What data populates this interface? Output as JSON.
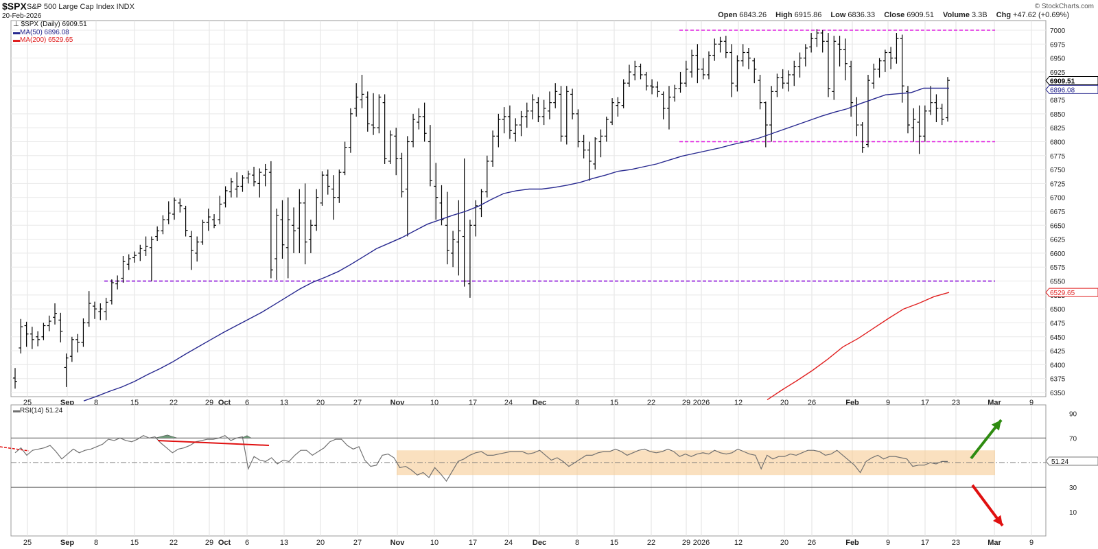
{
  "header": {
    "symbol": "$SPX",
    "name": "S&P 500 Large Cap Index INDX",
    "date": "20-Feb-2026",
    "brand": "© StockCharts.com",
    "open_label": "Open",
    "open": "6843.26",
    "high_label": "High",
    "high": "6915.86",
    "low_label": "Low",
    "low": "6836.33",
    "close_label": "Close",
    "close": "6909.51",
    "volume_label": "Volume",
    "volume": "3.3B",
    "chg_label": "Chg",
    "chg": "+47.62 (+0.69%)"
  },
  "legend": {
    "price": "$SPX (Daily) 6909.51",
    "ma50": "MA(50) 6896.08",
    "ma200": "MA(200) 6529.65",
    "rsi": "RSI(14) 51.24"
  },
  "colors": {
    "bars": "#000000",
    "ma50": "#27288f",
    "ma200": "#e02020",
    "magenta": "#e020e0",
    "purple": "#8a10d8",
    "rsi_line": "#707070",
    "rsi_band": "#f5c78a",
    "up_arrow": "#2e8b10",
    "down_arrow": "#e01010"
  },
  "chart_data": [
    {
      "type": "ohlc",
      "title": "$SPX (Daily)",
      "ylim": [
        6335,
        7015
      ],
      "y_ticks": [
        6350,
        6375,
        6400,
        6425,
        6450,
        6475,
        6500,
        6525,
        6550,
        6575,
        6600,
        6625,
        6650,
        6675,
        6700,
        6725,
        6750,
        6775,
        6800,
        6825,
        6850,
        6875,
        6900,
        6925,
        6950,
        6975,
        7000
      ],
      "x_tick_labels": [
        "25",
        "Sep",
        "8",
        "15",
        "22",
        "29",
        "Oct",
        "6",
        "13",
        "20",
        "27",
        "Nov",
        "10",
        "17",
        "24",
        "Dec",
        "8",
        "15",
        "22",
        "29",
        "2026",
        "12",
        "20",
        "26",
        "Feb",
        "9",
        "17",
        "23",
        "Mar",
        "9"
      ],
      "last_price_label": "6909.51",
      "ma50_label": "6896.08",
      "ma200_label": "6529.65",
      "ohlc": [
        [
          6376,
          6394,
          6357,
          6370
        ],
        [
          6430,
          6482,
          6420,
          6468
        ],
        [
          6470,
          6477,
          6432,
          6455
        ],
        [
          6455,
          6468,
          6428,
          6445
        ],
        [
          6450,
          6460,
          6433,
          6445
        ],
        [
          6450,
          6475,
          6444,
          6470
        ],
        [
          6470,
          6488,
          6460,
          6478
        ],
        [
          6485,
          6510,
          6472,
          6492
        ],
        [
          6480,
          6493,
          6440,
          6460
        ],
        [
          6395,
          6420,
          6360,
          6412
        ],
        [
          6415,
          6450,
          6405,
          6445
        ],
        [
          6445,
          6455,
          6422,
          6440
        ],
        [
          6440,
          6483,
          6432,
          6475
        ],
        [
          6475,
          6532,
          6468,
          6510
        ],
        [
          6505,
          6513,
          6482,
          6500
        ],
        [
          6495,
          6510,
          6480,
          6500
        ],
        [
          6495,
          6520,
          6480,
          6512
        ],
        [
          6515,
          6553,
          6508,
          6547
        ],
        [
          6545,
          6560,
          6535,
          6550
        ],
        [
          6555,
          6595,
          6547,
          6585
        ],
        [
          6580,
          6598,
          6570,
          6590
        ],
        [
          6592,
          6603,
          6583,
          6596
        ],
        [
          6600,
          6615,
          6586,
          6608
        ],
        [
          6605,
          6630,
          6595,
          6612
        ],
        [
          6610,
          6630,
          6550,
          6625
        ],
        [
          6630,
          6648,
          6622,
          6640
        ],
        [
          6640,
          6668,
          6634,
          6660
        ],
        [
          6660,
          6693,
          6652,
          6672
        ],
        [
          6670,
          6700,
          6660,
          6695
        ],
        [
          6690,
          6698,
          6673,
          6685
        ],
        [
          6680,
          6685,
          6630,
          6641
        ],
        [
          6630,
          6640,
          6570,
          6605
        ],
        [
          6600,
          6630,
          6585,
          6620
        ],
        [
          6620,
          6660,
          6615,
          6655
        ],
        [
          6655,
          6680,
          6640,
          6665
        ],
        [
          6660,
          6670,
          6645,
          6650
        ],
        [
          6660,
          6703,
          6652,
          6688
        ],
        [
          6690,
          6720,
          6682,
          6712
        ],
        [
          6710,
          6735,
          6700,
          6728
        ],
        [
          6715,
          6745,
          6700,
          6720
        ],
        [
          6720,
          6740,
          6710,
          6735
        ],
        [
          6735,
          6748,
          6725,
          6742
        ],
        [
          6740,
          6755,
          6720,
          6728
        ],
        [
          6725,
          6752,
          6700,
          6745
        ],
        [
          6740,
          6760,
          6720,
          6750
        ],
        [
          6745,
          6765,
          6555,
          6570
        ],
        [
          6590,
          6680,
          6552,
          6668
        ],
        [
          6660,
          6695,
          6590,
          6615
        ],
        [
          6610,
          6700,
          6555,
          6660
        ],
        [
          6650,
          6682,
          6600,
          6640
        ],
        [
          6645,
          6715,
          6600,
          6690
        ],
        [
          6690,
          6725,
          6580,
          6620
        ],
        [
          6625,
          6660,
          6600,
          6650
        ],
        [
          6650,
          6715,
          6640,
          6700
        ],
        [
          6690,
          6747,
          6685,
          6740
        ],
        [
          6740,
          6750,
          6705,
          6720
        ],
        [
          6715,
          6740,
          6660,
          6700
        ],
        [
          6700,
          6750,
          6690,
          6745
        ],
        [
          6745,
          6800,
          6740,
          6790
        ],
        [
          6790,
          6860,
          6780,
          6850
        ],
        [
          6860,
          6905,
          6845,
          6880
        ],
        [
          6875,
          6920,
          6860,
          6885
        ],
        [
          6880,
          6890,
          6818,
          6832
        ],
        [
          6830,
          6887,
          6812,
          6825
        ],
        [
          6825,
          6885,
          6815,
          6880
        ],
        [
          6870,
          6885,
          6760,
          6770
        ],
        [
          6765,
          6820,
          6760,
          6812
        ],
        [
          6810,
          6825,
          6740,
          6770
        ],
        [
          6770,
          6780,
          6700,
          6710
        ],
        [
          6715,
          6810,
          6630,
          6800
        ],
        [
          6800,
          6850,
          6790,
          6840
        ],
        [
          6835,
          6860,
          6822,
          6845
        ],
        [
          6845,
          6870,
          6800,
          6815
        ],
        [
          6800,
          6830,
          6720,
          6730
        ],
        [
          6720,
          6762,
          6660,
          6700
        ],
        [
          6690,
          6722,
          6650,
          6660
        ],
        [
          6650,
          6710,
          6580,
          6605
        ],
        [
          6600,
          6640,
          6575,
          6625
        ],
        [
          6620,
          6695,
          6560,
          6640
        ],
        [
          6630,
          6770,
          6540,
          6550
        ],
        [
          6545,
          6660,
          6520,
          6650
        ],
        [
          6650,
          6695,
          6630,
          6685
        ],
        [
          6680,
          6715,
          6665,
          6710
        ],
        [
          6710,
          6775,
          6700,
          6765
        ],
        [
          6765,
          6820,
          6755,
          6810
        ],
        [
          6810,
          6850,
          6790,
          6840
        ],
        [
          6840,
          6862,
          6815,
          6845
        ],
        [
          6845,
          6865,
          6805,
          6820
        ],
        [
          6815,
          6842,
          6800,
          6830
        ],
        [
          6830,
          6855,
          6810,
          6845
        ],
        [
          6845,
          6870,
          6825,
          6855
        ],
        [
          6855,
          6885,
          6840,
          6875
        ],
        [
          6870,
          6880,
          6835,
          6845
        ],
        [
          6845,
          6875,
          6830,
          6860
        ],
        [
          6855,
          6890,
          6840,
          6870
        ],
        [
          6870,
          6905,
          6860,
          6890
        ],
        [
          6885,
          6900,
          6800,
          6810
        ],
        [
          6810,
          6900,
          6795,
          6890
        ],
        [
          6885,
          6895,
          6840,
          6850
        ],
        [
          6850,
          6858,
          6790,
          6800
        ],
        [
          6800,
          6812,
          6770,
          6785
        ],
        [
          6785,
          6800,
          6730,
          6765
        ],
        [
          6760,
          6808,
          6750,
          6805
        ],
        [
          6800,
          6822,
          6772,
          6810
        ],
        [
          6810,
          6845,
          6800,
          6840
        ],
        [
          6835,
          6878,
          6830,
          6870
        ],
        [
          6865,
          6880,
          6845,
          6870
        ],
        [
          6865,
          6912,
          6860,
          6905
        ],
        [
          6905,
          6938,
          6898,
          6925
        ],
        [
          6920,
          6945,
          6910,
          6935
        ],
        [
          6935,
          6940,
          6912,
          6920
        ],
        [
          6920,
          6925,
          6892,
          6900
        ],
        [
          6900,
          6912,
          6885,
          6898
        ],
        [
          6898,
          6908,
          6880,
          6890
        ],
        [
          6885,
          6890,
          6840,
          6860
        ],
        [
          6860,
          6900,
          6822,
          6880
        ],
        [
          6880,
          6902,
          6872,
          6895
        ],
        [
          6895,
          6925,
          6888,
          6905
        ],
        [
          6905,
          6945,
          6898,
          6930
        ],
        [
          6925,
          6965,
          6915,
          6955
        ],
        [
          6955,
          6975,
          6905,
          6930
        ],
        [
          6930,
          6950,
          6912,
          6920
        ],
        [
          6920,
          6962,
          6912,
          6955
        ],
        [
          6955,
          6985,
          6945,
          6975
        ],
        [
          6975,
          6988,
          6960,
          6980
        ],
        [
          6980,
          6990,
          6950,
          6960
        ],
        [
          6960,
          6975,
          6880,
          6905
        ],
        [
          6900,
          6955,
          6890,
          6945
        ],
        [
          6945,
          6975,
          6935,
          6960
        ],
        [
          6960,
          6968,
          6930,
          6950
        ],
        [
          6945,
          6950,
          6905,
          6930
        ],
        [
          6910,
          6920,
          6858,
          6870
        ],
        [
          6870,
          6872,
          6790,
          6830
        ],
        [
          6830,
          6900,
          6800,
          6890
        ],
        [
          6890,
          6922,
          6880,
          6915
        ],
        [
          6915,
          6930,
          6895,
          6905
        ],
        [
          6905,
          6928,
          6890,
          6920
        ],
        [
          6920,
          6945,
          6900,
          6935
        ],
        [
          6935,
          6960,
          6915,
          6950
        ],
        [
          6950,
          6975,
          6935,
          6968
        ],
        [
          6970,
          6995,
          6960,
          6985
        ],
        [
          6985,
          7002,
          6970,
          6995
        ],
        [
          6995,
          7000,
          6960,
          6980
        ],
        [
          6980,
          6995,
          6880,
          6895
        ],
        [
          6890,
          6990,
          6875,
          6980
        ],
        [
          6975,
          6990,
          6935,
          6965
        ],
        [
          6965,
          6985,
          6910,
          6940
        ],
        [
          6935,
          6945,
          6845,
          6870
        ],
        [
          6865,
          6880,
          6810,
          6830
        ],
        [
          6830,
          6835,
          6780,
          6790
        ],
        [
          6795,
          6920,
          6790,
          6910
        ],
        [
          6905,
          6940,
          6895,
          6930
        ],
        [
          6930,
          6950,
          6915,
          6945
        ],
        [
          6945,
          6965,
          6925,
          6960
        ],
        [
          6960,
          6970,
          6930,
          6950
        ],
        [
          6950,
          6995,
          6940,
          6985
        ],
        [
          6985,
          6992,
          6870,
          6900
        ],
        [
          6890,
          6900,
          6815,
          6830
        ],
        [
          6825,
          6860,
          6800,
          6840
        ],
        [
          6835,
          6865,
          6778,
          6810
        ],
        [
          6810,
          6865,
          6800,
          6855
        ],
        [
          6855,
          6900,
          6848,
          6870
        ],
        [
          6870,
          6885,
          6835,
          6860
        ],
        [
          6860,
          6868,
          6830,
          6840
        ],
        [
          6843,
          6916,
          6836,
          6910
        ]
      ],
      "ma50": [
        6335,
        6343,
        6352,
        6360,
        6370,
        6382,
        6393,
        6405,
        6419,
        6432,
        6445,
        6458,
        6470,
        6482,
        6494,
        6508,
        6522,
        6536,
        6548,
        6557,
        6567,
        6580,
        6594,
        6608,
        6618,
        6628,
        6640,
        6652,
        6660,
        6668,
        6675,
        6684,
        6696,
        6707,
        6712,
        6715,
        6715,
        6718,
        6722,
        6727,
        6734,
        6740,
        6747,
        6750,
        6755,
        6760,
        6767,
        6774,
        6779,
        6784,
        6789,
        6795,
        6800,
        6806,
        6814,
        6822,
        6830,
        6838,
        6846,
        6853,
        6859,
        6868,
        6876,
        6884,
        6886,
        6888,
        6896,
        6896,
        6896
      ],
      "ma200": [
        6337,
        6355,
        6372,
        6390,
        6410,
        6432,
        6447,
        6465,
        6483,
        6500,
        6510,
        6522,
        6529.65
      ],
      "support_resistance": [
        {
          "value": 7000,
          "style": "magenta-dashed"
        },
        {
          "value": 6800,
          "style": "magenta-dashed"
        },
        {
          "value": 6550,
          "style": "purple-dashed"
        }
      ]
    },
    {
      "type": "line",
      "title": "RSI(14)",
      "ylim": [
        0,
        100
      ],
      "y_ticks": [
        10,
        30,
        50,
        70,
        90
      ],
      "last_label": "51.24",
      "band": [
        40,
        60
      ],
      "rsi": [
        58,
        62,
        56,
        60,
        61,
        62,
        64,
        59,
        53,
        57,
        61,
        58,
        60,
        61,
        63,
        65,
        69,
        68,
        70,
        68,
        67,
        69,
        72,
        70,
        71,
        66,
        62,
        58,
        61,
        62,
        64,
        67,
        68,
        69,
        69,
        70,
        72,
        68,
        70,
        71,
        45,
        55,
        52,
        51,
        54,
        49,
        52,
        51,
        56,
        60,
        60,
        56,
        59,
        62,
        67,
        69,
        69,
        64,
        61,
        63,
        52,
        47,
        48,
        56,
        57,
        54,
        46,
        47,
        44,
        40,
        42,
        38,
        46,
        41,
        35,
        43,
        51,
        53,
        56,
        58,
        59,
        56,
        56,
        57,
        58,
        59,
        59,
        59,
        57,
        58,
        60,
        56,
        52,
        54,
        51,
        47,
        50,
        53,
        56,
        56,
        58,
        59,
        59,
        61,
        59,
        56,
        58,
        60,
        61,
        59,
        58,
        59,
        61,
        59,
        55,
        57,
        55,
        57,
        58,
        57,
        60,
        58,
        57,
        58,
        61,
        59,
        57,
        56,
        45,
        56,
        53,
        55,
        55,
        57,
        56,
        58,
        60,
        60,
        59,
        56,
        57,
        60,
        56,
        52,
        48,
        42,
        51,
        54,
        56,
        53,
        55,
        55,
        54,
        53,
        47,
        48,
        48,
        50,
        49,
        51,
        51
      ]
    }
  ]
}
